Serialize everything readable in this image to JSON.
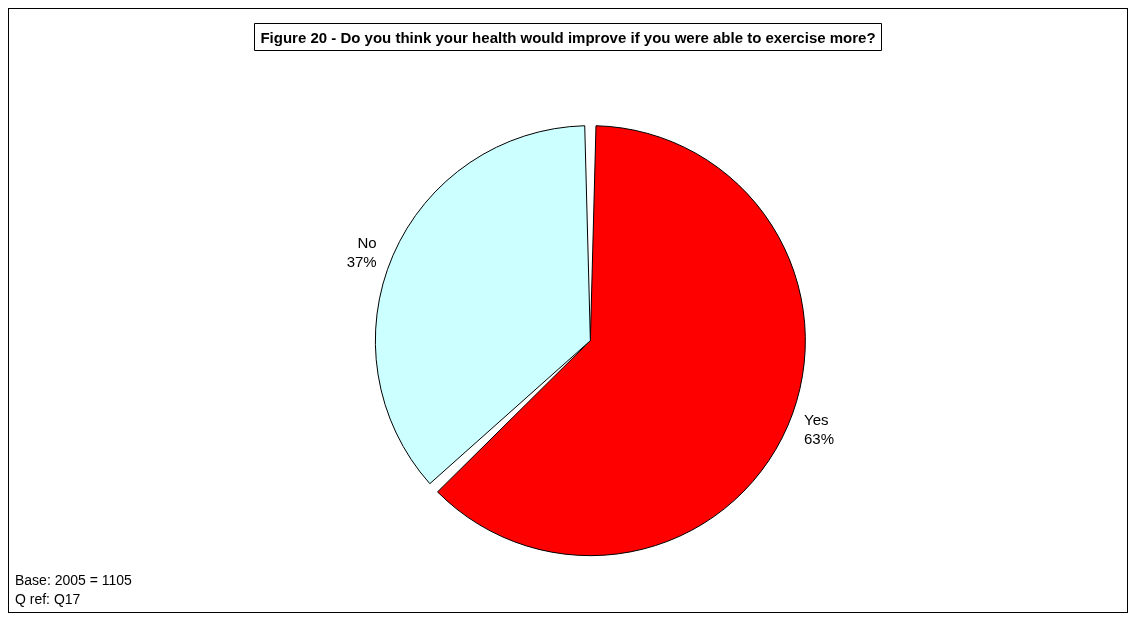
{
  "chart_data": {
    "type": "pie",
    "title": "Figure 20 - Do you think your health would improve if you were able to exercise more?",
    "categories": [
      "Yes",
      "No"
    ],
    "values": [
      63,
      37
    ],
    "colors": [
      "#ff0000",
      "#ccffff"
    ],
    "value_labels": [
      "63%",
      "37%"
    ],
    "annotations": [
      "Base: 2005 = 1105",
      "Q ref: Q17"
    ]
  }
}
